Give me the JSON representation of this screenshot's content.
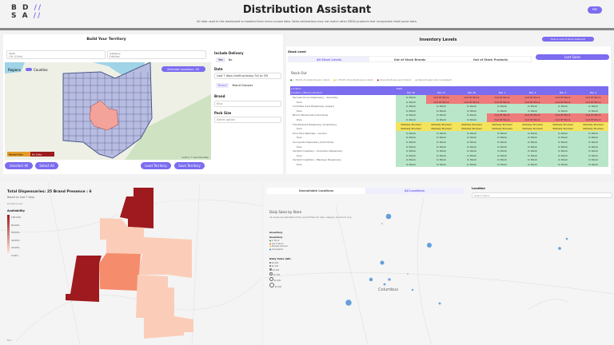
{
  "header": {
    "logo": "BDSA",
    "title": "Distribution Assistant",
    "subtitle": "All data used in this dashboard is modeled from menu scrape data. Sales estimations may not match other BDSA products that incorporate retail panel data.",
    "pdf_label": "PDF"
  },
  "territory": {
    "title": "Build Your Territory",
    "state_label": "State",
    "state_value": "OH (Ohio)",
    "category_label": "Category",
    "category_value": "Edibles",
    "toggle_left": "Regions",
    "toggle_right": "Counties",
    "selected_btn": "Selected Locations: 26",
    "legend_partial": "Partial Data",
    "legend_none": "No Data",
    "attribution": "Leaflet | © OpenStreetMap",
    "unselect_all": "Unselect All",
    "select_all": "Select All",
    "load": "Load Territory",
    "save": "Save Territory",
    "include_delivery_label": "Include Delivery",
    "yes": "Yes",
    "no": "No",
    "date_label": "Date",
    "date_value": "Last 7 days (trailing today-7d) to 3/5",
    "brand_tab": "Brand",
    "grouper_tab": "Brand Grouper",
    "brand_label": "Brand",
    "brand_value": "Kiva",
    "pack_label": "Pack Size",
    "pack_value": "Select option"
  },
  "inventory": {
    "title": "Inventory Levels",
    "help_btn": "How is Out of Stock Defined?",
    "stock_level_label": "Stock Level",
    "tabs": [
      "All Stock Levels",
      "Out of Stock Brands",
      "Out of Stock Products"
    ],
    "lost_sales": "Lost Sales",
    "stock_out": "Stock Out",
    "legend": [
      "> 50.0% of products are in stock",
      "< 50.0% of products are in stock",
      "All products are out of stock",
      "Discontinued (not considered)"
    ],
    "header_left": "Location",
    "header_sub": "Location  |  Brand  |  Product",
    "header_date": "Date",
    "dates": [
      "Feb 26",
      "Feb 27",
      "Feb 28",
      "Mar 1",
      "Mar 2",
      "Mar 3",
      "Mar 4"
    ],
    "rows": [
      {
        "name": "Harvest Grove Dispensary - Sandusky",
        "status": "grrrrrr"
      },
      {
        "name": "Kiva",
        "status": "grrrrrr"
      },
      {
        "name": "Columbia Care Dispensary (Logan)",
        "status": "ggggggg"
      },
      {
        "name": "Kiva",
        "status": "ggggggg"
      },
      {
        "name": "Bloom Medicinals (Columbus)",
        "status": "gggrrrr"
      },
      {
        "name": "Kiva",
        "status": "gggrrrr"
      },
      {
        "name": "The Botanist Dispensary (Columbus)",
        "status": "yyyyyyy"
      },
      {
        "name": "Kiva",
        "status": "yyyyyyy"
      },
      {
        "name": "Pure Ohio Wellness - London",
        "status": "ggggggg"
      },
      {
        "name": "Kiva",
        "status": "ggggggg"
      },
      {
        "name": "Sunnyside Dispensary (Columbus)",
        "status": "ggggggg"
      },
      {
        "name": "Kiva",
        "status": "ggggggg"
      },
      {
        "name": "Verdant Creations - Columbus Dispensary",
        "status": "ggggggg"
      },
      {
        "name": "Kiva",
        "status": "ggggggg"
      },
      {
        "name": "Verdant Creations - Marengo Dispensary",
        "status": "ggggggg"
      },
      {
        "name": "Kiva",
        "status": "ggggggg"
      }
    ],
    "labels": {
      "g": "In Stock",
      "r": "Out Of Stock",
      "y": "Partially Stocked"
    },
    "colors": {
      "g": "#b9e6c9",
      "r": "#ef7b7b",
      "y": "#f5e35c",
      "accent": "#7b6cf0"
    }
  },
  "availability": {
    "title": "Total Dispensaries: 25 Brand Presence : 6",
    "subtitle": "Based on Last 7 days",
    "extra": "Dispensaries",
    "legend_title": "Availability",
    "ticks": [
      "100.00%",
      "80.00%",
      "60.00%",
      "40.00%",
      "20.00%",
      "0.00%"
    ],
    "attribution": "Esri"
  },
  "sales": {
    "tabs": [
      "Unavailable Locations",
      "All Locations"
    ],
    "location_label": "Location",
    "location_value": "Select option",
    "title": "Daily Sales by Store",
    "subtitle": "All values are estimates of the current filters for date, category and brand only.",
    "inventory_title": "Inventory",
    "inventory_sub": "Inventory",
    "inventory_items": [
      "In Stock",
      "Out of Stock",
      "Partially Stocked",
      "Unavailable"
    ],
    "sales_title": "Daily Sales ($K)",
    "sales_items": [
      "$0.00K",
      "$0.10K",
      "$0.20K",
      "$0.30K",
      "$0.40K",
      "$0.50K"
    ],
    "city": "Columbus"
  }
}
